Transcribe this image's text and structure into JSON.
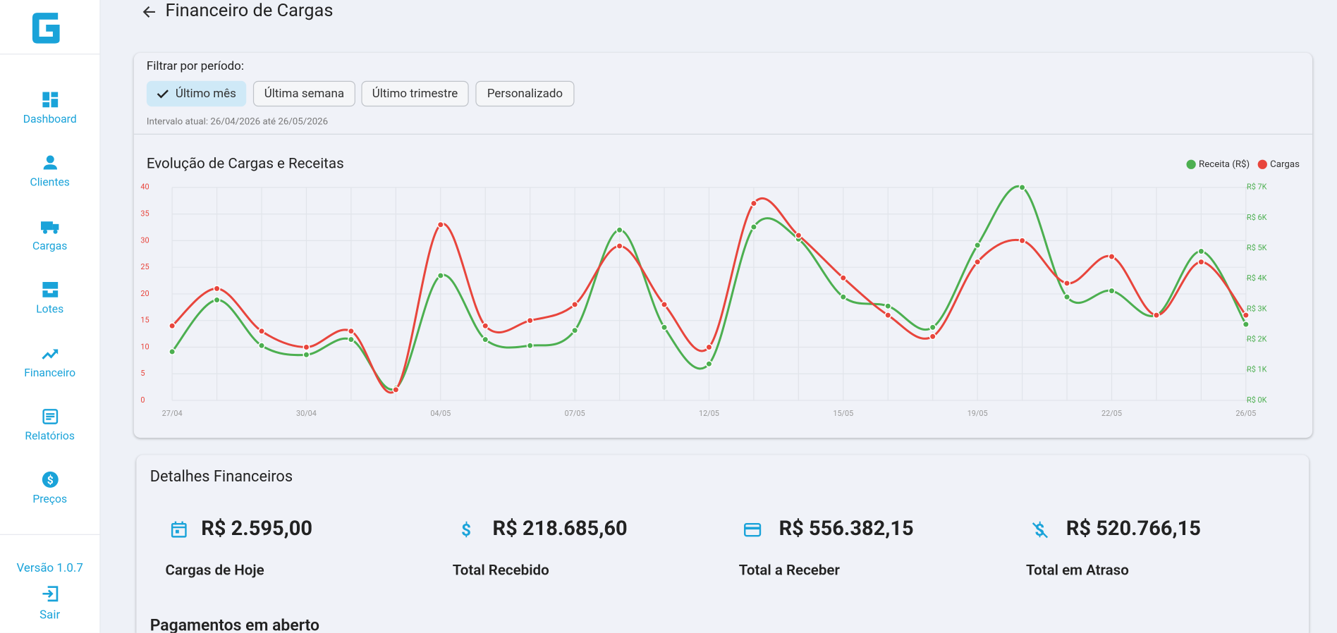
{
  "page": {
    "nav": [
      "Dashboard",
      "Clientes",
      "Cargas",
      "Lotes",
      "Financeiro",
      "Relatórios",
      "Preços"
    ],
    "version": "Versão 1.0.7",
    "logout": "Sair",
    "title": "Financeiro de Cargas",
    "filter": {
      "label": "Filtrar por período:",
      "options": [
        "Último mês",
        "Última semana",
        "Último trimestre",
        "Personalizado"
      ],
      "interval": "Intervalo atual: 26/04/2026 até 26/05/2026"
    },
    "details": {
      "title": "Detalhes Financeiros",
      "cards": [
        {
          "value": "R$ 2.595,00",
          "label": "Cargas de Hoje"
        },
        {
          "value": "R$ 218.685,60",
          "label": "Total Recebido"
        },
        {
          "value": "R$ 556.382,15",
          "label": "Total a Receber"
        },
        {
          "value": "R$ 520.766,15",
          "label": "Total em Atraso"
        }
      ]
    },
    "open_payments": "Pagamentos em aberto"
  },
  "chart_data": {
    "type": "line",
    "title": "Evolução de Cargas e Receitas",
    "legend": "top-right",
    "grid": true,
    "categories": [
      "27/04",
      null,
      null,
      "30/04",
      null,
      null,
      "04/05",
      null,
      null,
      "07/05",
      null,
      null,
      "12/05",
      null,
      null,
      "15/05",
      null,
      null,
      "19/05",
      null,
      null,
      "22/05",
      null,
      null,
      "26/05"
    ],
    "series": [
      {
        "name": "Receita (R$)",
        "color": "#4caf50",
        "axis": "y2",
        "values": [
          1600,
          3300,
          1800,
          1500,
          2000,
          400,
          4100,
          2000,
          1800,
          2300,
          5600,
          2400,
          1200,
          5700,
          5300,
          3400,
          3100,
          2400,
          5100,
          7000,
          3400,
          3600,
          2800,
          4900,
          2500
        ]
      },
      {
        "name": "Cargas",
        "color": "#e8453c",
        "axis": "y",
        "values": [
          14,
          21,
          13,
          10,
          13,
          2,
          33,
          14,
          15,
          18,
          29,
          18,
          10,
          37,
          31,
          23,
          16,
          12,
          26,
          30,
          22,
          27,
          16,
          26,
          16
        ]
      }
    ],
    "ylim": [
      0,
      40
    ],
    "yticks": [
      0,
      5,
      10,
      15,
      20,
      25,
      30,
      35,
      40
    ],
    "y2lim": [
      0,
      7000
    ],
    "y2ticks": [
      {
        "value": 0,
        "label": "R$ 0K"
      },
      {
        "value": 1000,
        "label": "R$ 1K"
      },
      {
        "value": 2000,
        "label": "R$ 2K"
      },
      {
        "value": 3000,
        "label": "R$ 3K"
      },
      {
        "value": 4000,
        "label": "R$ 4K"
      },
      {
        "value": 5000,
        "label": "R$ 5K"
      },
      {
        "value": 6000,
        "label": "R$ 6K"
      },
      {
        "value": 7000,
        "label": "R$ 7K"
      }
    ]
  }
}
